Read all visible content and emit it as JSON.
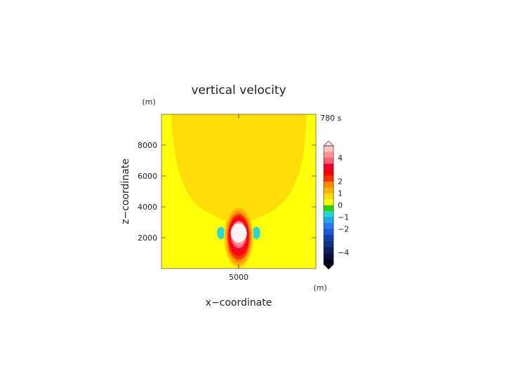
{
  "chart_data": {
    "type": "heatmap",
    "title": "vertical velocity",
    "time_label": "780 s",
    "xlabel": "x−coordinate",
    "ylabel": "z−coordinate",
    "x_unit": "(m)",
    "y_unit": "(m)",
    "xlim": [
      2500,
      7500
    ],
    "ylim": [
      0,
      10000
    ],
    "x_ticks": [
      {
        "value": 5000,
        "label": "5000"
      }
    ],
    "y_ticks": [
      {
        "value": 2000,
        "label": "2000"
      },
      {
        "value": 4000,
        "label": "4000"
      },
      {
        "value": 6000,
        "label": "6000"
      },
      {
        "value": 8000,
        "label": "8000"
      }
    ],
    "colorbar": {
      "range": [
        -5,
        5
      ],
      "colors": [
        "#060626",
        "#08123e",
        "#0b2060",
        "#0d3088",
        "#1040b0",
        "#1a58d8",
        "#2a78f0",
        "#1aa8e8",
        "#22d6d6",
        "#33cc00",
        "#ffff00",
        "#ffdd00",
        "#ffb300",
        "#ff8800",
        "#ff3000",
        "#ff0000",
        "#ee0030",
        "#ff6070",
        "#ff9090",
        "#ffc0c0"
      ],
      "ticks": [
        {
          "value": 4,
          "label": "4"
        },
        {
          "value": 2,
          "label": "2"
        },
        {
          "value": 1,
          "label": "1"
        },
        {
          "value": 0,
          "label": "0"
        },
        {
          "value": -1,
          "label": "−1"
        },
        {
          "value": -2,
          "label": "−2"
        },
        {
          "value": -4,
          "label": "−4"
        }
      ]
    },
    "fields": {
      "background_value": 0.2,
      "updraft_region_value": 0.5,
      "updraft_region": {
        "x_left": [
          2800,
          2840,
          2900,
          2960,
          3030,
          3140,
          3320,
          3520,
          3780,
          4120,
          4520,
          4830
        ],
        "x_right": [
          7200,
          7180,
          7130,
          7070,
          7000,
          6880,
          6700,
          6480,
          6220,
          5880,
          5480,
          5170
        ],
        "z": [
          10000,
          9000,
          8000,
          7200,
          6500,
          5800,
          5000,
          4400,
          3900,
          3500,
          3150,
          2900
        ]
      },
      "core": {
        "center_x": 5000,
        "center_z": 2050,
        "contours": [
          {
            "value": 0.8,
            "half_width_x": 480,
            "half_height_z": 2050,
            "center_z": 2050
          },
          {
            "value": 1.2,
            "half_width_x": 440,
            "half_height_z": 1880,
            "center_z": 2050
          },
          {
            "value": 1.7,
            "half_width_x": 400,
            "half_height_z": 1680,
            "center_z": 2050
          },
          {
            "value": 2.2,
            "half_width_x": 360,
            "half_height_z": 1480,
            "center_z": 2050
          },
          {
            "value": 2.7,
            "half_width_x": 330,
            "half_height_z": 1280,
            "center_z": 2100
          },
          {
            "value": 3.2,
            "half_width_x": 300,
            "half_height_z": 1050,
            "center_z": 2150
          },
          {
            "value": 3.7,
            "half_width_x": 260,
            "half_height_z": 880,
            "center_z": 2200
          },
          {
            "value": 4.3,
            "half_width_x": 220,
            "half_height_z": 780,
            "center_z": 2250
          },
          {
            "value": 4.8,
            "half_width_x": 140,
            "half_height_z": 550,
            "center_z": 2350
          }
        ],
        "extra_value": 5.0,
        "extra_center_z": 2300,
        "extra_half_width_x": 260,
        "extra_half_height_z": 620
      },
      "downdrafts": [
        {
          "value": -0.8,
          "center_x": 4430,
          "center_z": 2300,
          "half_width_x": 130,
          "half_height_z": 400
        },
        {
          "value": -0.8,
          "center_x": 5570,
          "center_z": 2300,
          "half_width_x": 130,
          "half_height_z": 400
        }
      ]
    }
  }
}
